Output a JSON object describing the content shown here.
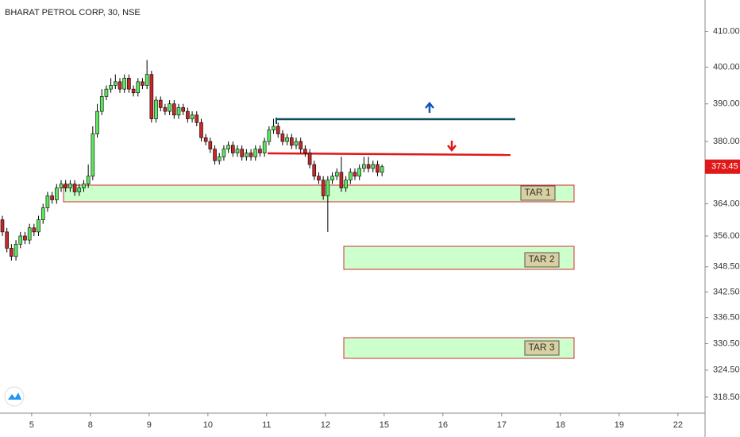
{
  "chart_data": {
    "type": "candlestick",
    "title": "BHARAT PETROL CORP, 30, NSE",
    "log_scale": true,
    "up_color": "#5ee65e",
    "down_color": "#c62828",
    "ylim": [
      315,
      419
    ],
    "yticks": [
      {
        "value": 410,
        "label": "410.00"
      },
      {
        "value": 400,
        "label": "400.00"
      },
      {
        "value": 390,
        "label": "390.00"
      },
      {
        "value": 380,
        "label": "380.00"
      },
      {
        "value": 364,
        "label": "364.00"
      },
      {
        "value": 356,
        "label": "356.00"
      },
      {
        "value": 348.5,
        "label": "348.50"
      },
      {
        "value": 342.5,
        "label": "342.50"
      },
      {
        "value": 336.5,
        "label": "336.50"
      },
      {
        "value": 330.5,
        "label": "330.50"
      },
      {
        "value": 324.5,
        "label": "324.50"
      },
      {
        "value": 318.5,
        "label": "318.50"
      }
    ],
    "xlim": [
      0,
      156
    ],
    "xticks": [
      {
        "value": 7,
        "label": "5"
      },
      {
        "value": 20,
        "label": "8"
      },
      {
        "value": 33,
        "label": "9"
      },
      {
        "value": 46,
        "label": "10"
      },
      {
        "value": 59,
        "label": "11"
      },
      {
        "value": 72,
        "label": "12"
      },
      {
        "value": 85,
        "label": "15"
      },
      {
        "value": 98,
        "label": "16"
      },
      {
        "value": 111,
        "label": "17"
      },
      {
        "value": 124,
        "label": "18"
      },
      {
        "value": 137,
        "label": "19"
      },
      {
        "value": 150,
        "label": "22"
      }
    ],
    "open": [
      360,
      357,
      353,
      351,
      354,
      356,
      355,
      358,
      357,
      360,
      363,
      366,
      365,
      368,
      369,
      368,
      369,
      367,
      368,
      369,
      371,
      382,
      388,
      392,
      394,
      395,
      396,
      394,
      397,
      394,
      393,
      396,
      395,
      398,
      386,
      391,
      389,
      388,
      390,
      387,
      389,
      388,
      386,
      387,
      385,
      381,
      380,
      378,
      375,
      376,
      378,
      379,
      377,
      378,
      376,
      377,
      376,
      378,
      377,
      380,
      383,
      384,
      382,
      380,
      381,
      379,
      380,
      378,
      377,
      374,
      371,
      370,
      366,
      370,
      371,
      372,
      368,
      370,
      372,
      371,
      373,
      374,
      373,
      374,
      372
    ],
    "high": [
      361,
      358,
      354,
      355,
      357,
      357,
      359,
      359,
      361,
      364,
      367,
      367,
      369,
      370,
      370,
      370,
      370,
      369,
      370,
      374,
      384,
      390,
      394,
      395,
      397,
      398,
      397,
      398,
      398,
      395,
      397,
      397,
      402,
      399,
      392,
      392,
      390,
      391,
      391,
      390,
      390,
      389,
      388,
      388,
      386,
      382,
      381,
      379,
      377,
      379,
      380,
      380,
      379,
      379,
      378,
      378,
      379,
      379,
      381,
      384,
      386,
      385,
      383,
      382,
      382,
      381,
      381,
      379,
      378,
      375,
      372,
      371,
      371,
      372,
      373,
      376,
      371,
      373,
      373,
      374,
      376,
      376,
      375,
      375,
      374
    ],
    "low": [
      356,
      352,
      350,
      350,
      353,
      354,
      354,
      356,
      356,
      359,
      362,
      364,
      364,
      367,
      367,
      367,
      366,
      366,
      367,
      368,
      370,
      381,
      387,
      391,
      393,
      394,
      393,
      393,
      393,
      392,
      392,
      394,
      394,
      385,
      385,
      388,
      387,
      387,
      386,
      386,
      387,
      385,
      385,
      384,
      380,
      379,
      377,
      374,
      374,
      375,
      377,
      376,
      376,
      375,
      375,
      375,
      375,
      376,
      376,
      379,
      382,
      381,
      379,
      379,
      378,
      378,
      377,
      376,
      373,
      370,
      369,
      365,
      357,
      369,
      370,
      367,
      367,
      369,
      370,
      370,
      372,
      372,
      372,
      371,
      371
    ],
    "close": [
      357,
      353,
      351,
      354,
      356,
      355,
      358,
      357,
      360,
      363,
      366,
      365,
      368,
      369,
      368,
      369,
      367,
      368,
      369,
      371,
      382,
      388,
      392,
      394,
      395,
      396,
      394,
      397,
      394,
      393,
      396,
      395,
      398,
      386,
      391,
      389,
      388,
      390,
      387,
      389,
      388,
      386,
      387,
      385,
      381,
      380,
      378,
      375,
      376,
      378,
      379,
      377,
      378,
      376,
      377,
      376,
      378,
      377,
      380,
      383,
      384,
      382,
      380,
      381,
      379,
      380,
      378,
      377,
      374,
      371,
      370,
      366,
      370,
      371,
      372,
      368,
      370,
      372,
      371,
      373,
      374,
      373,
      374,
      372,
      373.45
    ],
    "last_price_label": "373.45",
    "zones": [
      "TAR 1",
      "TAR 2",
      "TAR 3"
    ]
  }
}
